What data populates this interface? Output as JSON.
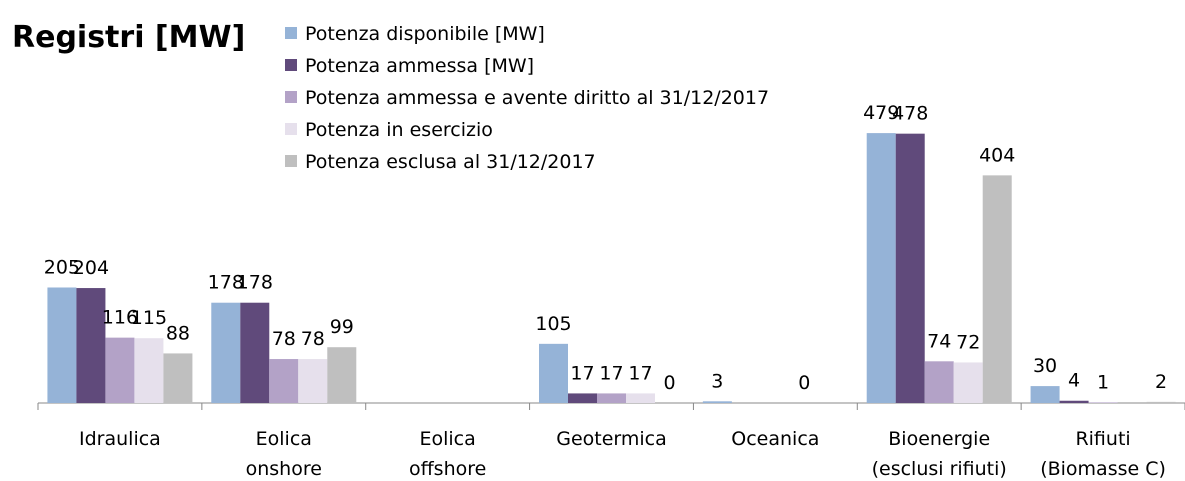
{
  "chart_data": {
    "type": "bar",
    "title": "Registri [MW]",
    "categories": [
      "Idraulica",
      "Eolica\nonshore",
      "Eolica\noffshore",
      "Geotermica",
      "Oceanica",
      "Bioenergie\n(esclusi rifiuti)",
      "Rifiuti\n(Biomasse C)"
    ],
    "series": [
      {
        "name": "Potenza disponibile [MW]",
        "color": "#95b3d7",
        "values": [
          205,
          178,
          null,
          105,
          3,
          479,
          30
        ]
      },
      {
        "name": "Potenza ammessa [MW]",
        "color": "#604a7b",
        "values": [
          204,
          178,
          null,
          17,
          null,
          478,
          4
        ]
      },
      {
        "name": "Potenza ammessa e avente diritto al 31/12/2017",
        "color": "#b3a2c7",
        "values": [
          116,
          78,
          null,
          17,
          null,
          74,
          1
        ]
      },
      {
        "name": "Potenza in esercizio",
        "color": "#e6e0ec",
        "values": [
          115,
          78,
          null,
          17,
          0,
          72,
          null
        ]
      },
      {
        "name": "Potenza esclusa al 31/12/2017",
        "color": "#bfbfbf",
        "values": [
          88,
          99,
          null,
          0,
          null,
          404,
          2
        ]
      }
    ],
    "ylim": [
      0,
      520
    ],
    "legend": "top"
  }
}
